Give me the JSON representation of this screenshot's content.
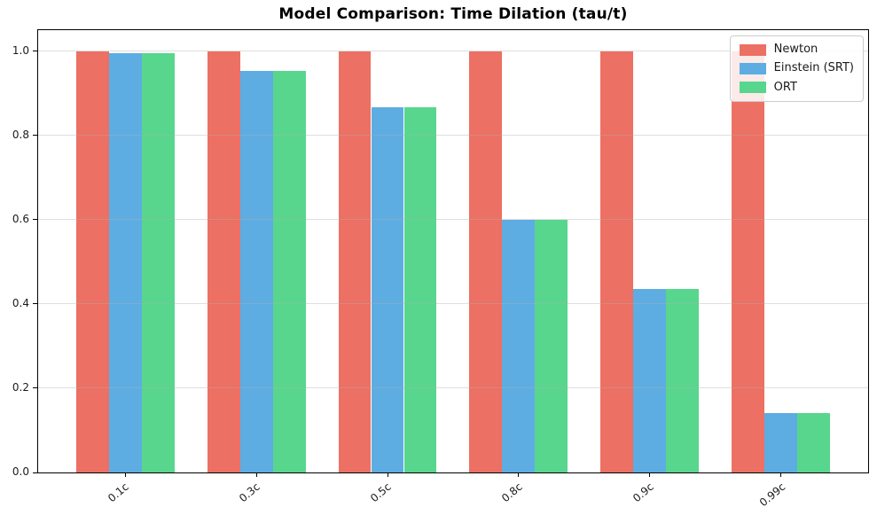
{
  "chart_data": {
    "type": "bar",
    "title": "Model Comparison: Time Dilation (tau/t)",
    "categories": [
      "0.1c",
      "0.3c",
      "0.5c",
      "0.8c",
      "0.9c",
      "0.99c"
    ],
    "series": [
      {
        "name": "Newton",
        "color": "#EC7063",
        "values": [
          1.0,
          1.0,
          1.0,
          1.0,
          1.0,
          1.0
        ]
      },
      {
        "name": "Einstein (SRT)",
        "color": "#5DADE2",
        "values": [
          0.995,
          0.954,
          0.866,
          0.6,
          0.436,
          0.141
        ]
      },
      {
        "name": "ORT",
        "color": "#58D68D",
        "values": [
          0.995,
          0.954,
          0.866,
          0.6,
          0.436,
          0.141
        ]
      }
    ],
    "xlabel": "",
    "ylabel": "",
    "ylim": [
      0,
      1.05
    ],
    "xlim": [
      -0.6625,
      5.6625
    ],
    "yticks": [
      "0.0",
      "0.2",
      "0.4",
      "0.6",
      "0.8",
      "1.0"
    ],
    "bar_width": 0.25,
    "grid": true,
    "grid_color": "#b0b0b0",
    "grid_alpha": 0.4,
    "legend_position": "upper right",
    "x_tick_rotation": 40
  }
}
